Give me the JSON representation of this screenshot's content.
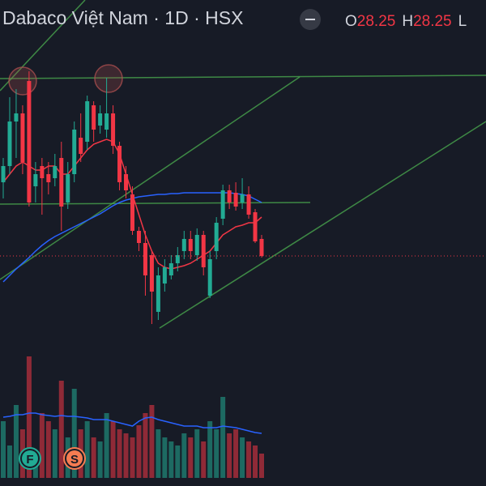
{
  "chart_data": {
    "type": "candlestick",
    "title": "Dabaco Việt Nam · 1D · HSX",
    "ohlc_legend": [
      {
        "label": "O",
        "value": 28.25
      },
      {
        "label": "H",
        "value": 28.25
      },
      {
        "label": "L"
      }
    ],
    "event_markers": [
      "F",
      "S"
    ],
    "up_color": "#22ab94",
    "down_color": "#f23645",
    "fast_ma_color": "#f23645",
    "slow_ma_color": "#2962ff",
    "ylim": [
      22.57,
      34.57
    ],
    "open": [
      30.07,
      30.47,
      31.57,
      31.77,
      32.57,
      29.97,
      30.47,
      30.27,
      30.17,
      30.67,
      29.57,
      30.27,
      31.17,
      31.07,
      31.97,
      31.47,
      31.37,
      31.77,
      30.97,
      30.27,
      29.77,
      28.87,
      28.57,
      28.27,
      26.87,
      27.57,
      27.77,
      28.07,
      28.37,
      28.67,
      28.27,
      28.77,
      27.27,
      28.37,
      29.17,
      29.87,
      29.81,
      29.57,
      29.77,
      29.33,
      28.67
    ],
    "high": [
      30.67,
      32.17,
      32.37,
      31.97,
      32.81,
      30.57,
      30.67,
      30.57,
      30.77,
      31.07,
      30.57,
      31.57,
      31.77,
      32.21,
      32.07,
      31.97,
      32.65,
      31.97,
      31.07,
      30.47,
      29.97,
      28.97,
      28.87,
      28.37,
      27.97,
      28.17,
      28.27,
      28.47,
      28.87,
      28.87,
      28.93,
      28.87,
      28.37,
      29.21,
      30.01,
      30.01,
      30.07,
      30.17,
      29.97,
      29.41,
      28.77
    ],
    "low": [
      29.67,
      30.27,
      30.67,
      30.27,
      29.47,
      29.57,
      29.27,
      29.77,
      29.97,
      28.87,
      29.41,
      30.07,
      30.57,
      30.87,
      31.07,
      31.27,
      31.17,
      30.77,
      29.87,
      29.67,
      28.77,
      28.37,
      27.27,
      26.57,
      26.67,
      27.37,
      27.67,
      27.87,
      28.17,
      28.17,
      28.13,
      27.77,
      27.21,
      28.17,
      29.01,
      29.41,
      29.37,
      29.41,
      29.17,
      28.57,
      28.21
    ],
    "close": [
      30.47,
      31.57,
      31.77,
      30.57,
      29.57,
      30.27,
      30.17,
      30.07,
      30.47,
      29.47,
      30.27,
      31.37,
      30.77,
      32.07,
      31.37,
      31.77,
      31.77,
      30.97,
      30.07,
      29.87,
      28.87,
      28.57,
      27.77,
      27.37,
      27.77,
      27.97,
      28.07,
      28.27,
      28.67,
      28.37,
      28.77,
      27.97,
      28.17,
      29.07,
      29.87,
      29.57,
      29.47,
      29.77,
      29.27,
      28.61,
      28.25
    ],
    "ma_fast": [
      30.07,
      30.27,
      30.47,
      30.57,
      30.47,
      30.37,
      30.37,
      30.47,
      30.47,
      30.27,
      30.27,
      30.47,
      30.67,
      30.87,
      31.01,
      31.07,
      31.13,
      31.07,
      30.77,
      30.27,
      29.77,
      29.27,
      28.77,
      28.37,
      28.07,
      27.97,
      27.93,
      27.97,
      28.01,
      28.07,
      28.17,
      28.27,
      28.37,
      28.57,
      28.77,
      28.87,
      28.97,
      29.01,
      29.07,
      29.07,
      29.21
    ],
    "ma_slow": [
      27.61,
      27.77,
      27.93,
      28.07,
      28.21,
      28.37,
      28.51,
      28.63,
      28.73,
      28.81,
      28.89,
      28.97,
      29.05,
      29.13,
      29.21,
      29.29,
      29.39,
      29.49,
      29.57,
      29.63,
      29.67,
      29.71,
      29.73,
      29.75,
      29.77,
      29.77,
      29.79,
      29.79,
      29.81,
      29.81,
      29.81,
      29.81,
      29.81,
      29.81,
      29.81,
      29.81,
      29.79,
      29.77,
      29.73,
      29.65,
      29.57
    ],
    "volume_lim": [
      0,
      160
    ],
    "volume": [
      70,
      40,
      90,
      60,
      150,
      30,
      80,
      70,
      60,
      120,
      50,
      110,
      60,
      70,
      50,
      45,
      80,
      70,
      60,
      55,
      50,
      65,
      80,
      90,
      60,
      50,
      45,
      40,
      55,
      50,
      60,
      45,
      70,
      60,
      100,
      55,
      60,
      50,
      45,
      40,
      30
    ],
    "volume_ma": [
      75,
      76,
      78,
      78,
      80,
      80,
      78,
      77,
      76,
      77,
      76,
      76,
      75,
      74,
      72,
      72,
      72,
      70,
      68,
      66,
      64,
      70,
      74,
      75,
      72,
      70,
      68,
      66,
      64,
      64,
      64,
      62,
      62,
      62,
      64,
      63,
      62,
      60,
      58,
      56,
      55
    ]
  }
}
